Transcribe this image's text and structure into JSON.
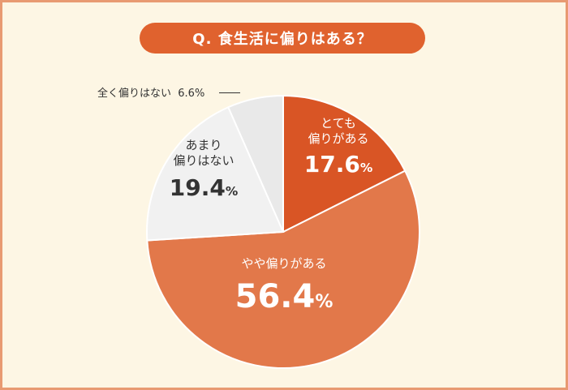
{
  "colors": {
    "background": "#fdf6e4",
    "border": "#e89a72",
    "title_pill": "#e0622e"
  },
  "chart_data": {
    "type": "pie",
    "title": "Q. 食生活に偏りはある？",
    "unit": "%",
    "slices": [
      {
        "label": "とても偏りがある",
        "label_lines": [
          "とても",
          "偏りがある"
        ],
        "value": 17.6,
        "value_text": "17.6",
        "color": "#d95525"
      },
      {
        "label": "やや偏りがある",
        "label_lines": [
          "やや偏りがある"
        ],
        "value": 56.4,
        "value_text": "56.4",
        "color": "#e2784a"
      },
      {
        "label": "あまり偏りはない",
        "label_lines": [
          "あまり",
          "偏りはない"
        ],
        "value": 19.4,
        "value_text": "19.4",
        "color": "#f1f1f1"
      },
      {
        "label": "全く偏りはない",
        "label_lines": [
          "全く偏りはない"
        ],
        "value": 6.6,
        "value_text": "6.6",
        "color": "#e9e9e9"
      }
    ]
  }
}
